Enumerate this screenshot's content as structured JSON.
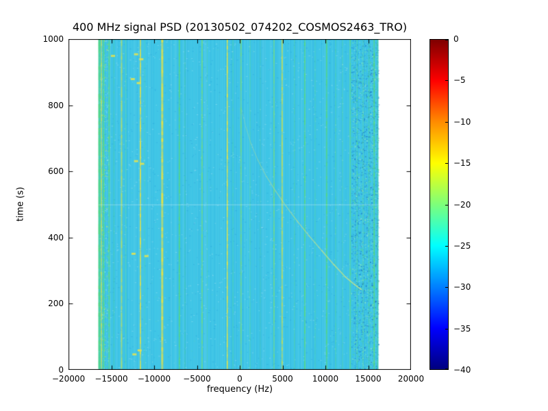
{
  "chart_data": {
    "type": "heatmap",
    "title": "400 MHz signal PSD (20130502_074202_COSMOS2463_TRO)",
    "xlabel": "frequency (Hz)",
    "ylabel": "time (s)",
    "xlim": [
      -20000,
      20000
    ],
    "ylim": [
      0,
      1000
    ],
    "xticks": [
      {
        "value": -20000,
        "label": "−20000"
      },
      {
        "value": -15000,
        "label": "−15000"
      },
      {
        "value": -10000,
        "label": "−10000"
      },
      {
        "value": -5000,
        "label": "−5000"
      },
      {
        "value": 0,
        "label": "0"
      },
      {
        "value": 5000,
        "label": "5000"
      },
      {
        "value": 10000,
        "label": "10000"
      },
      {
        "value": 15000,
        "label": "15000"
      },
      {
        "value": 20000,
        "label": "20000"
      }
    ],
    "yticks": [
      {
        "value": 0,
        "label": "0"
      },
      {
        "value": 200,
        "label": "200"
      },
      {
        "value": 400,
        "label": "400"
      },
      {
        "value": 600,
        "label": "600"
      },
      {
        "value": 800,
        "label": "800"
      },
      {
        "value": 1000,
        "label": "1000"
      }
    ],
    "colormap": "jet",
    "colorbar": {
      "ticks": [
        {
          "value": 0,
          "label": "0"
        },
        {
          "value": -5,
          "label": "−5"
        },
        {
          "value": -10,
          "label": "−10"
        },
        {
          "value": -15,
          "label": "−15"
        },
        {
          "value": -20,
          "label": "−20"
        },
        {
          "value": -25,
          "label": "−25"
        },
        {
          "value": -30,
          "label": "−30"
        },
        {
          "value": -35,
          "label": "−35"
        },
        {
          "value": -40,
          "label": "−40"
        }
      ],
      "range": [
        -40,
        0
      ],
      "stops": [
        {
          "pos": 0,
          "color": "#7f0000"
        },
        {
          "pos": 12.5,
          "color": "#ff0000"
        },
        {
          "pos": 25,
          "color": "#ff8c00"
        },
        {
          "pos": 37.5,
          "color": "#ffff00"
        },
        {
          "pos": 50,
          "color": "#7dff7a"
        },
        {
          "pos": 62.5,
          "color": "#00ffff"
        },
        {
          "pos": 87.5,
          "color": "#0000ff"
        },
        {
          "pos": 100,
          "color": "#00007f"
        }
      ]
    },
    "data_extent": {
      "freq": [
        -16500,
        16200
      ],
      "time": [
        0,
        1000
      ]
    },
    "background_level_db": -28,
    "background_color": "#3ec5e6",
    "noise_bands": [
      {
        "freq": [
          -16500,
          -15300
        ],
        "density": 900,
        "colors": [
          "#56d98e",
          "#bfe84f",
          "#35c0e0",
          "#8feaf4"
        ]
      },
      {
        "freq": [
          13000,
          16200
        ],
        "density": 2600,
        "colors": [
          "#1d7fd4",
          "#35b0e0",
          "#56d98e",
          "#9aecc0",
          "#1060b8"
        ]
      }
    ],
    "rfi_lines": [
      {
        "freq": -16400,
        "width": 3,
        "color": "#56d97a",
        "alpha": 0.9
      },
      {
        "freq": -16150,
        "width": 2,
        "color": "#cfe64a",
        "alpha": 0.8
      },
      {
        "freq": -15900,
        "width": 2,
        "color": "#56d97a",
        "alpha": 0.9
      },
      {
        "freq": -15250,
        "width": 2,
        "color": "#56d97a",
        "alpha": 0.85
      },
      {
        "freq": -14700,
        "width": 1,
        "color": "#56d97a",
        "alpha": 0.5
      },
      {
        "freq": -13800,
        "width": 2,
        "color": "#cfe64a",
        "alpha": 0.75
      },
      {
        "freq": -13300,
        "width": 1,
        "color": "#56d97a",
        "alpha": 0.6
      },
      {
        "freq": -11600,
        "width": 2,
        "color": "#e6e242",
        "alpha": 0.9
      },
      {
        "freq": -11100,
        "width": 1,
        "color": "#56d97a",
        "alpha": 0.4
      },
      {
        "freq": -9050,
        "width": 3,
        "color": "#e6e242",
        "alpha": 0.95
      },
      {
        "freq": -7050,
        "width": 2,
        "color": "#56d97a",
        "alpha": 0.85
      },
      {
        "freq": -6400,
        "width": 1,
        "color": "#56d97a",
        "alpha": 0.5
      },
      {
        "freq": -4400,
        "width": 2,
        "color": "#6fdc82",
        "alpha": 0.8
      },
      {
        "freq": -3800,
        "width": 1,
        "color": "#56d97a",
        "alpha": 0.35
      },
      {
        "freq": -1450,
        "width": 2,
        "color": "#e6e242",
        "alpha": 0.9
      },
      {
        "freq": -800,
        "width": 1,
        "color": "#56d97a",
        "alpha": 0.5
      },
      {
        "freq": 150,
        "width": 2,
        "color": "#6fdc82",
        "alpha": 0.8
      },
      {
        "freq": 1200,
        "width": 1,
        "color": "#56d97a",
        "alpha": 0.55
      },
      {
        "freq": 2400,
        "width": 1,
        "color": "#56d97a",
        "alpha": 0.35
      },
      {
        "freq": 4000,
        "width": 2,
        "color": "#6fdc82",
        "alpha": 0.8
      },
      {
        "freq": 4950,
        "width": 2,
        "color": "#d8e23c",
        "alpha": 0.8
      },
      {
        "freq": 6400,
        "width": 1,
        "color": "#56d97a",
        "alpha": 0.6
      },
      {
        "freq": 7600,
        "width": 2,
        "color": "#56d97a",
        "alpha": 0.8
      },
      {
        "freq": 8800,
        "width": 1,
        "color": "#56d97a",
        "alpha": 0.5
      },
      {
        "freq": 10150,
        "width": 2,
        "color": "#56d97a",
        "alpha": 0.85
      },
      {
        "freq": 11200,
        "width": 1,
        "color": "#56d97a",
        "alpha": 0.6
      },
      {
        "freq": 12000,
        "width": 1,
        "color": "#56d97a",
        "alpha": 0.5
      },
      {
        "freq": 12900,
        "width": 2,
        "color": "#56d97a",
        "alpha": 0.7
      },
      {
        "freq": 13700,
        "width": 1,
        "color": "#56d97a",
        "alpha": 0.6
      },
      {
        "freq": 14400,
        "width": 1,
        "color": "#56d97a",
        "alpha": 0.6
      },
      {
        "freq": 15100,
        "width": 1,
        "color": "#56d97a",
        "alpha": 0.7
      },
      {
        "freq": 15700,
        "width": 2,
        "color": "#56d97a",
        "alpha": 0.85
      },
      {
        "freq": 16100,
        "width": 1,
        "color": "#56d97a",
        "alpha": 0.7
      }
    ],
    "speckle_patches": [
      {
        "freq": -14800,
        "time": 950,
        "color": "#e8e44c"
      },
      {
        "freq": -12100,
        "time": 955,
        "color": "#e8e44c"
      },
      {
        "freq": -11500,
        "time": 940,
        "color": "#e8e44c"
      },
      {
        "freq": -12500,
        "time": 880,
        "color": "#e8e44c"
      },
      {
        "freq": -11800,
        "time": 868,
        "color": "#e8e44c"
      },
      {
        "freq": -12100,
        "time": 632,
        "color": "#e8e44c"
      },
      {
        "freq": -11400,
        "time": 624,
        "color": "#e8e44c"
      },
      {
        "freq": -12400,
        "time": 352,
        "color": "#e8e44c"
      },
      {
        "freq": -10900,
        "time": 345,
        "color": "#e8e44c"
      },
      {
        "freq": -11700,
        "time": 60,
        "color": "#e8e44c"
      },
      {
        "freq": -12300,
        "time": 48,
        "color": "#e8e44c"
      }
    ],
    "features": {
      "horizontal_line_time": 500,
      "note": "mostly uniform ~−28 dB cyan background with vertical RFI lines and a satellite Doppler S-curve"
    },
    "doppler_track": {
      "color": "#d6e87e",
      "points": [
        [
          250,
          785
        ],
        [
          700,
          735
        ],
        [
          1300,
          685
        ],
        [
          2100,
          635
        ],
        [
          3100,
          585
        ],
        [
          4200,
          540
        ],
        [
          5400,
          495
        ],
        [
          6700,
          450
        ],
        [
          8100,
          405
        ],
        [
          9600,
          360
        ],
        [
          11000,
          318
        ],
        [
          12300,
          282
        ],
        [
          13400,
          258
        ],
        [
          14200,
          243
        ]
      ]
    }
  }
}
